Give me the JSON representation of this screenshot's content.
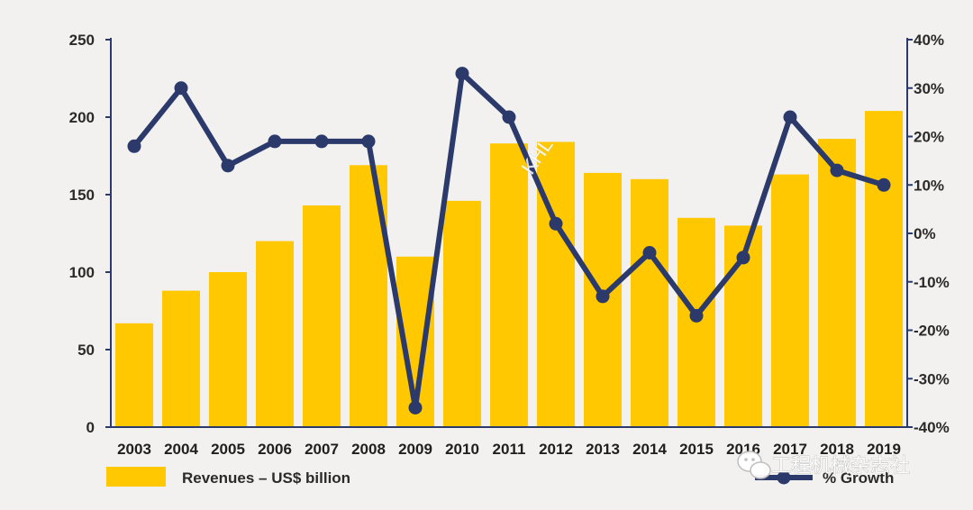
{
  "chart_data": {
    "type": "bar",
    "categories": [
      "2003",
      "2004",
      "2005",
      "2006",
      "2007",
      "2008",
      "2009",
      "2010",
      "2011",
      "2012",
      "2013",
      "2014",
      "2015",
      "2016",
      "2017",
      "2018",
      "2019"
    ],
    "series": [
      {
        "name": "Revenues – US$ billion",
        "type": "bar",
        "axis": "left",
        "color": "#ffc800",
        "values": [
          67,
          88,
          100,
          120,
          143,
          169,
          110,
          146,
          183,
          184,
          164,
          160,
          135,
          130,
          163,
          186,
          204
        ]
      },
      {
        "name": "% Growth",
        "type": "line",
        "axis": "right",
        "color": "#2b3a6b",
        "values": [
          18,
          30,
          14,
          19,
          19,
          19,
          -36,
          33,
          24,
          2,
          -13,
          -4,
          -17,
          -5,
          24,
          13,
          10
        ]
      }
    ],
    "y_left": {
      "lim": [
        0,
        250
      ],
      "ticks": [
        "0",
        "50",
        "100",
        "150",
        "200",
        "250"
      ]
    },
    "y_right": {
      "lim": [
        -40,
        40
      ],
      "ticks": [
        "-40%",
        "-30%",
        "-20%",
        "-10%",
        "0%",
        "10%",
        "20%",
        "30%",
        "40%"
      ]
    },
    "legend": {
      "placement": "bottom",
      "items": [
        "Revenues – US$ billion",
        "% Growth"
      ]
    },
    "grid": false,
    "title": "",
    "xlabel": "",
    "ylabel": ""
  },
  "watermark": {
    "text": "工程机械杂志社",
    "diagonal_text": "KHL",
    "icon": "wechat-icon"
  }
}
